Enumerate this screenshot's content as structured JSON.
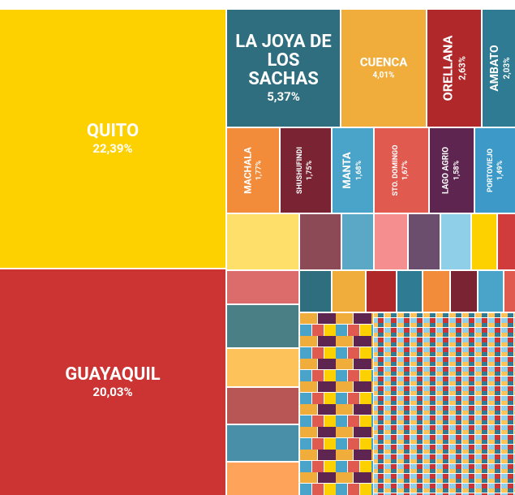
{
  "chart_data": {
    "type": "treemap",
    "categories": [
      "QUITO",
      "GUAYAQUIL",
      "LA JOYA DE LOS SACHAS",
      "CUENCA",
      "ORELLANA",
      "AMBATO",
      "MACHALA",
      "SHUSHUFINDI",
      "MANTA",
      "STO. DOMINGO",
      "LAGO AGRIO",
      "PORTOVIEJO",
      null,
      null,
      null,
      null,
      null,
      null,
      null,
      null,
      null,
      null,
      null,
      null,
      null,
      null,
      null,
      null,
      null,
      null,
      null,
      null,
      null,
      null,
      null,
      null
    ],
    "values": [
      22.39,
      20.03,
      5.37,
      4.01,
      2.63,
      2.03,
      1.77,
      1.75,
      1.68,
      1.67,
      1.58,
      1.49,
      1.4,
      1.0,
      0.8,
      0.85,
      0.8,
      0.75,
      0.6,
      0.35,
      1.2,
      1.2,
      1.2,
      1.2,
      1.2,
      1.1,
      0.5,
      0.5,
      0.45,
      0.4,
      0.4,
      0.4,
      0.4,
      0.4,
      0.35,
      0.15
    ],
    "value_labels": [
      "22,39%",
      "20,03%",
      "5,37%",
      "4,01%",
      "2,63%",
      "2,03%",
      "1,77%",
      "1,75%",
      "1,68%",
      "1,67%",
      "1,58%",
      "1,49%",
      null,
      null,
      null,
      null,
      null,
      null,
      null,
      null,
      null,
      null,
      null,
      null,
      null,
      null,
      null,
      null,
      null,
      null,
      null,
      null,
      null,
      null,
      null,
      null
    ],
    "colors": [
      "#fdd000",
      "#cc3333",
      "#2e6e7e",
      "#f0ad3c",
      "#b0282a",
      "#2f7b94",
      "#f28b3a",
      "#7a2333",
      "#4aa3c8",
      "#e05a50",
      "#5e2550",
      "#3d9ac8",
      "#fddf6a",
      "#8b4a55",
      "#5aa7c6",
      "#f58f8f",
      "#6b4e6e",
      "#8fd0e8",
      "#fdd000",
      "#d03b3b",
      "#dc6b6b",
      "#4a7f86",
      "#fdc25a",
      "#b85555",
      "#4a8fa8",
      "#fda35a",
      "#2e6e7e",
      "#f0ad3c",
      "#b0282a",
      "#2f7b94",
      "#f28b3a",
      "#7a2333",
      "#4aa3c8",
      "#e05a50",
      "#5e2550",
      "#3d9ac8"
    ]
  }
}
